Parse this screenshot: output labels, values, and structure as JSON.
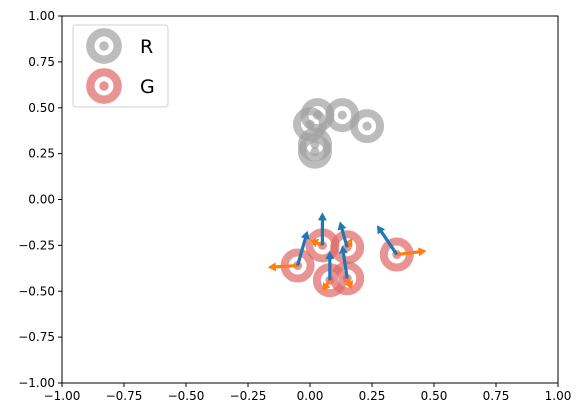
{
  "chart_data": {
    "type": "scatter",
    "xlim": [
      -1,
      1
    ],
    "ylim": [
      -1,
      1
    ],
    "xticks": [
      "−1.00",
      "−0.75",
      "−0.50",
      "−0.25",
      "0.00",
      "0.25",
      "0.50",
      "0.75",
      "1.00"
    ],
    "yticks": [
      "−1.00",
      "−0.75",
      "−0.50",
      "−0.25",
      "0.00",
      "0.25",
      "0.50",
      "0.75",
      "1.00"
    ],
    "xtick_values": [
      -1,
      -0.75,
      -0.5,
      -0.25,
      0,
      0.25,
      0.5,
      0.75,
      1
    ],
    "ytick_values": [
      -1,
      -0.75,
      -0.5,
      -0.25,
      0,
      0.25,
      0.5,
      0.75,
      1
    ],
    "grid": false,
    "legend_position": "top-left",
    "series": [
      {
        "name": "R",
        "color": "#a0a0a0",
        "points": [
          {
            "x": 0.0,
            "y": 0.41
          },
          {
            "x": 0.03,
            "y": 0.46
          },
          {
            "x": 0.13,
            "y": 0.46
          },
          {
            "x": 0.23,
            "y": 0.4
          },
          {
            "x": 0.02,
            "y": 0.3
          },
          {
            "x": 0.02,
            "y": 0.26
          }
        ]
      },
      {
        "name": "G",
        "color": "#e06666",
        "points": [
          {
            "x": 0.05,
            "y": -0.25
          },
          {
            "x": 0.15,
            "y": -0.26
          },
          {
            "x": -0.05,
            "y": -0.36
          },
          {
            "x": 0.08,
            "y": -0.44
          },
          {
            "x": 0.15,
            "y": -0.43
          },
          {
            "x": 0.35,
            "y": -0.3
          }
        ]
      }
    ],
    "blue_arrows": {
      "color": "#1f77b4",
      "items": [
        {
          "x": -0.05,
          "y": -0.36,
          "dx": 0.04,
          "dy": 0.19
        },
        {
          "x": 0.05,
          "y": -0.25,
          "dx": 0.0,
          "dy": 0.18
        },
        {
          "x": 0.15,
          "y": -0.26,
          "dx": -0.03,
          "dy": 0.14
        },
        {
          "x": 0.08,
          "y": -0.44,
          "dx": 0.0,
          "dy": 0.16
        },
        {
          "x": 0.15,
          "y": -0.43,
          "dx": -0.02,
          "dy": 0.18
        },
        {
          "x": 0.35,
          "y": -0.3,
          "dx": -0.08,
          "dy": 0.16
        }
      ]
    },
    "orange_arrows": {
      "color": "#ff7f0e",
      "items": [
        {
          "x": -0.05,
          "y": -0.36,
          "dx": -0.12,
          "dy": -0.01
        },
        {
          "x": 0.05,
          "y": -0.25,
          "dx": -0.05,
          "dy": 0.03
        },
        {
          "x": 0.15,
          "y": -0.26,
          "dx": 0.02,
          "dy": 0.05
        },
        {
          "x": 0.08,
          "y": -0.44,
          "dx": -0.03,
          "dy": -0.06
        },
        {
          "x": 0.15,
          "y": -0.43,
          "dx": 0.02,
          "dy": -0.06
        },
        {
          "x": 0.35,
          "y": -0.3,
          "dx": 0.12,
          "dy": 0.02
        }
      ]
    }
  }
}
